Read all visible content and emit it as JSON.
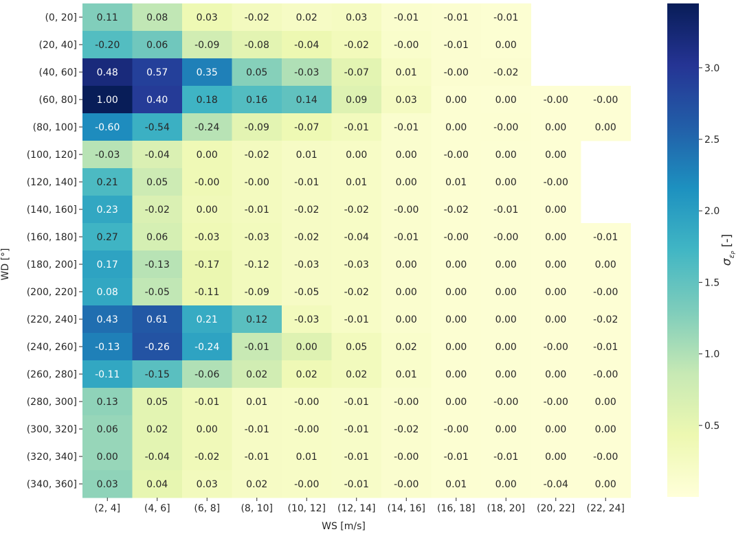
{
  "chart_data": {
    "type": "heatmap",
    "title": "",
    "xlabel": "WS [m/s]",
    "ylabel": "WD [°]",
    "x_categories": [
      "(2, 4]",
      "(4, 6]",
      "(6, 8]",
      "(8, 10]",
      "(10, 12]",
      "(12, 14]",
      "(14, 16]",
      "(16, 18]",
      "(18, 20]",
      "(20, 22]",
      "(22, 24]"
    ],
    "y_categories": [
      "(0, 20]",
      "(20, 40]",
      "(40, 60]",
      "(60, 80]",
      "(80, 100]",
      "(100, 120]",
      "(120, 140]",
      "(140, 160]",
      "(160, 180]",
      "(180, 200]",
      "(200, 220]",
      "(220, 240]",
      "(240, 260]",
      "(260, 280]",
      "(280, 300]",
      "(300, 320]",
      "(320, 340]",
      "(340, 360]"
    ],
    "annotations": [
      [
        "0.11",
        "0.08",
        "0.03",
        "-0.02",
        "0.02",
        "0.03",
        "-0.01",
        "-0.01",
        "-0.01",
        null,
        null
      ],
      [
        "-0.20",
        "0.06",
        "-0.09",
        "-0.08",
        "-0.04",
        "-0.02",
        "-0.00",
        "-0.01",
        "0.00",
        null,
        null
      ],
      [
        "0.48",
        "0.57",
        "0.35",
        "0.05",
        "-0.03",
        "-0.07",
        "0.01",
        "-0.00",
        "-0.02",
        null,
        null
      ],
      [
        "1.00",
        "0.40",
        "0.18",
        "0.16",
        "0.14",
        "0.09",
        "0.03",
        "0.00",
        "0.00",
        "-0.00",
        "-0.00"
      ],
      [
        "-0.60",
        "-0.54",
        "-0.24",
        "-0.09",
        "-0.07",
        "-0.01",
        "-0.01",
        "0.00",
        "-0.00",
        "0.00",
        "0.00"
      ],
      [
        "-0.03",
        "-0.04",
        "0.00",
        "-0.02",
        "0.01",
        "0.00",
        "0.00",
        "-0.00",
        "0.00",
        "0.00",
        null
      ],
      [
        "0.21",
        "0.05",
        "-0.00",
        "-0.00",
        "-0.01",
        "0.01",
        "0.00",
        "0.01",
        "0.00",
        "-0.00",
        null
      ],
      [
        "0.23",
        "-0.02",
        "0.00",
        "-0.01",
        "-0.02",
        "-0.02",
        "-0.00",
        "-0.02",
        "-0.01",
        "0.00",
        null
      ],
      [
        "0.27",
        "0.06",
        "-0.03",
        "-0.03",
        "-0.02",
        "-0.04",
        "-0.01",
        "-0.00",
        "-0.00",
        "0.00",
        "-0.01"
      ],
      [
        "0.17",
        "-0.13",
        "-0.17",
        "-0.12",
        "-0.03",
        "-0.03",
        "0.00",
        "0.00",
        "0.00",
        "0.00",
        "0.00"
      ],
      [
        "0.08",
        "-0.05",
        "-0.11",
        "-0.09",
        "-0.05",
        "-0.02",
        "0.00",
        "0.00",
        "0.00",
        "0.00",
        "-0.00"
      ],
      [
        "0.43",
        "0.61",
        "0.21",
        "0.12",
        "-0.03",
        "-0.01",
        "0.00",
        "0.00",
        "0.00",
        "0.00",
        "-0.02"
      ],
      [
        "-0.13",
        "-0.26",
        "-0.24",
        "-0.01",
        "0.00",
        "0.05",
        "0.02",
        "0.00",
        "0.00",
        "-0.00",
        "-0.01"
      ],
      [
        "-0.11",
        "-0.15",
        "-0.06",
        "0.02",
        "0.02",
        "0.02",
        "0.01",
        "0.00",
        "0.00",
        "0.00",
        "-0.00"
      ],
      [
        "0.13",
        "0.05",
        "-0.01",
        "0.01",
        "-0.00",
        "-0.01",
        "-0.00",
        "0.00",
        "-0.00",
        "-0.00",
        "0.00"
      ],
      [
        "0.06",
        "0.02",
        "0.00",
        "-0.01",
        "-0.00",
        "-0.01",
        "-0.02",
        "-0.00",
        "0.00",
        "0.00",
        "0.00"
      ],
      [
        "0.00",
        "-0.04",
        "-0.02",
        "-0.01",
        "0.01",
        "-0.01",
        "-0.00",
        "-0.01",
        "-0.01",
        "0.00",
        "-0.00"
      ],
      [
        "0.03",
        "0.04",
        "0.03",
        "0.02",
        "-0.00",
        "-0.01",
        "-0.00",
        "0.01",
        "0.00",
        "-0.04",
        "0.00"
      ]
    ],
    "color_values": [
      [
        1.28,
        0.9,
        0.4,
        0.28,
        0.22,
        0.25,
        0.12,
        0.1,
        0.08,
        null,
        null
      ],
      [
        1.6,
        1.4,
        0.75,
        0.55,
        0.42,
        0.32,
        0.15,
        0.1,
        0.08,
        null,
        null
      ],
      [
        3.2,
        2.9,
        2.3,
        1.25,
        1.0,
        0.55,
        0.2,
        0.1,
        0.1,
        null,
        null
      ],
      [
        3.45,
        2.95,
        1.75,
        1.6,
        1.5,
        0.6,
        0.25,
        0.08,
        0.07,
        0.05,
        0.05
      ],
      [
        2.2,
        1.8,
        0.95,
        0.55,
        0.4,
        0.3,
        0.12,
        0.08,
        0.08,
        0.05,
        0.05
      ],
      [
        0.95,
        0.65,
        0.38,
        0.28,
        0.22,
        0.2,
        0.12,
        0.08,
        0.07,
        0.05,
        null
      ],
      [
        1.65,
        0.8,
        0.38,
        0.28,
        0.22,
        0.2,
        0.12,
        0.08,
        0.07,
        0.05,
        null
      ],
      [
        1.9,
        0.65,
        0.35,
        0.28,
        0.22,
        0.2,
        0.12,
        0.08,
        0.07,
        0.05,
        null
      ],
      [
        1.75,
        0.7,
        0.38,
        0.3,
        0.22,
        0.2,
        0.12,
        0.08,
        0.07,
        0.05,
        0.05
      ],
      [
        1.95,
        0.95,
        0.45,
        0.3,
        0.22,
        0.2,
        0.12,
        0.08,
        0.07,
        0.05,
        0.05
      ],
      [
        1.9,
        0.9,
        0.45,
        0.3,
        0.22,
        0.2,
        0.12,
        0.08,
        0.07,
        0.05,
        0.05
      ],
      [
        2.45,
        2.65,
        1.85,
        1.55,
        0.3,
        0.2,
        0.12,
        0.08,
        0.07,
        0.05,
        0.05
      ],
      [
        2.3,
        2.7,
        1.95,
        0.85,
        0.6,
        0.3,
        0.15,
        0.08,
        0.07,
        0.05,
        0.05
      ],
      [
        1.9,
        1.55,
        1.0,
        0.75,
        0.38,
        0.3,
        0.15,
        0.08,
        0.07,
        0.05,
        0.05
      ],
      [
        1.2,
        0.55,
        0.35,
        0.22,
        0.2,
        0.18,
        0.12,
        0.08,
        0.07,
        0.05,
        0.05
      ],
      [
        1.15,
        0.55,
        0.35,
        0.22,
        0.2,
        0.18,
        0.12,
        0.08,
        0.07,
        0.05,
        0.05
      ],
      [
        1.15,
        0.55,
        0.35,
        0.22,
        0.2,
        0.18,
        0.12,
        0.08,
        0.07,
        0.05,
        0.05
      ],
      [
        1.2,
        0.5,
        0.3,
        0.22,
        0.2,
        0.18,
        0.12,
        0.08,
        0.07,
        0.05,
        0.05
      ]
    ],
    "colorbar": {
      "label": "σ_εP [-]",
      "label_main": "σ",
      "label_sub": "ε",
      "label_subsub": "P",
      "label_suffix": " [-]",
      "min": 0.0,
      "max": 3.45,
      "ticks": [
        0.5,
        1.0,
        1.5,
        2.0,
        2.5,
        3.0
      ],
      "tick_labels": [
        "0.5",
        "1.0",
        "1.5",
        "2.0",
        "2.5",
        "3.0"
      ],
      "colormap": "YlGnBu",
      "colormap_stops": [
        "#ffffd9",
        "#edf8b1",
        "#c7e9b4",
        "#7fcdbb",
        "#41b6c4",
        "#1d91c0",
        "#225ea8",
        "#253494",
        "#081d58"
      ]
    },
    "text_color_dark": "#262626",
    "text_color_light": "#ffffff"
  }
}
